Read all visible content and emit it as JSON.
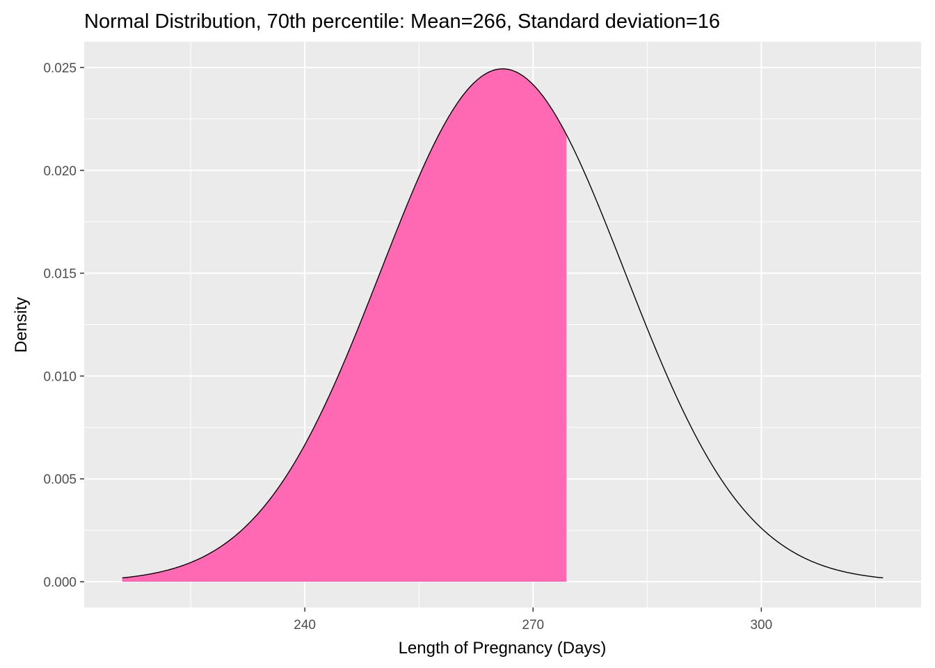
{
  "chart_data": {
    "type": "area",
    "title": "Normal Distribution, 70th percentile:  Mean=266, Standard deviation=16",
    "xlabel": "Length of Pregnancy (Days)",
    "ylabel": "Density",
    "distribution": "normal",
    "mean": 266,
    "sd": 16,
    "percentile": 70,
    "x_range": [
      216,
      316
    ],
    "shaded_range": [
      216,
      274.4
    ],
    "xlim": [
      211,
      321
    ],
    "ylim": [
      -0.00125,
      0.02625
    ],
    "x_ticks": [
      240,
      270,
      300
    ],
    "x_tick_labels": [
      "240",
      "270",
      "300"
    ],
    "y_ticks": [
      0,
      0.005,
      0.01,
      0.015,
      0.02,
      0.025
    ],
    "y_tick_labels": [
      "0.000",
      "0.005",
      "0.010",
      "0.015",
      "0.020",
      "0.025"
    ],
    "x_minor_ticks": [
      225,
      255,
      285,
      315
    ],
    "y_minor_ticks": [
      0.0025,
      0.0075,
      0.0125,
      0.0175,
      0.0225
    ],
    "grid": true,
    "colors": {
      "panel": "#ebebeb",
      "grid": "#ffffff",
      "fill": "#ff69b4",
      "line": "#000000",
      "tick": "#333333"
    }
  }
}
